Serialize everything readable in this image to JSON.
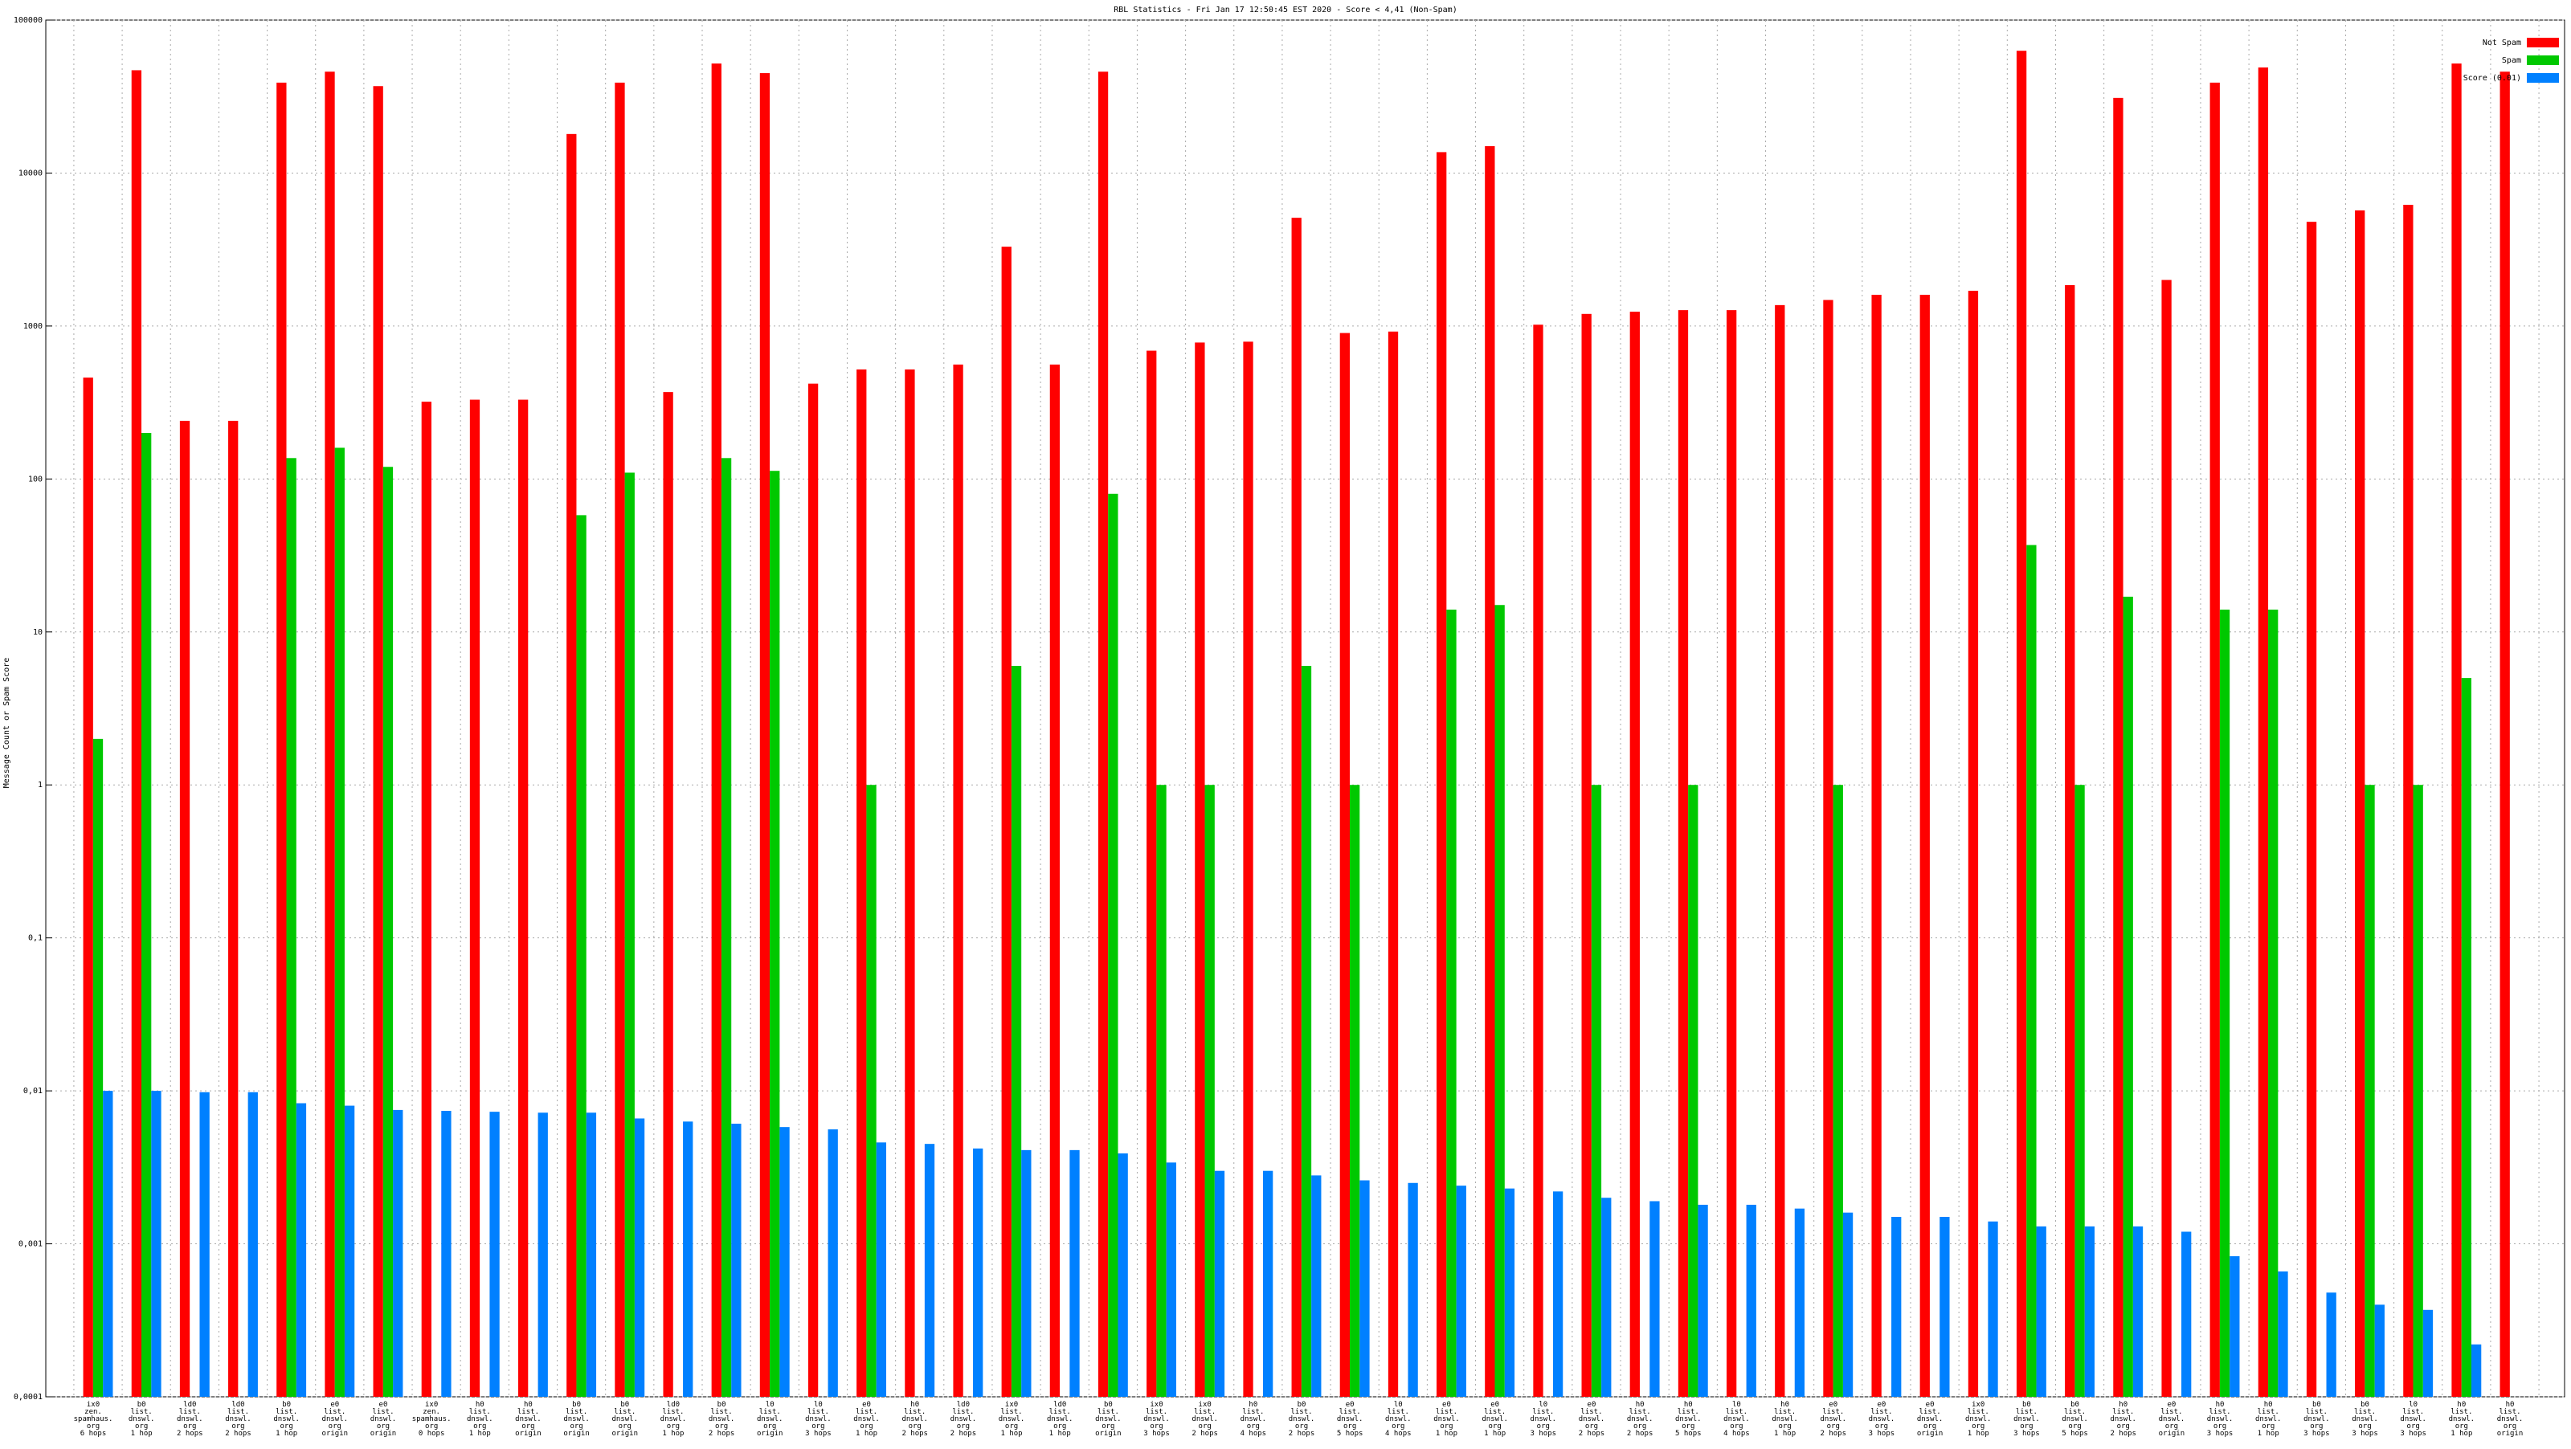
{
  "chart_data": {
    "type": "bar",
    "title": "RBL Statistics - Fri Jan 17 12:50:45 EST 2020 - Score < 4,41 (Non-Spam)",
    "y_label": "Message Count or Spam Score",
    "log_scale": true,
    "grid": true,
    "legend_position": "top-right",
    "ylim": [
      0.0001,
      100000
    ],
    "yticks": [
      {
        "value": 0.0001,
        "label": "0,0001"
      },
      {
        "value": 0.001,
        "label": "0,001"
      },
      {
        "value": 0.01,
        "label": "0,01"
      },
      {
        "value": 0.1,
        "label": "0,1"
      },
      1,
      10,
      100,
      1000,
      10000,
      100000
    ],
    "categories": [
      "ix0\nzen.\nspamhaus.\norg\n6 hops",
      "b0\nlist.\ndnswl.\norg\n1 hop",
      "ld0\nlist.\ndnswl.\norg\n2 hops",
      "ld0\nlist.\ndnswl.\norg\n2 hops",
      "b0\nlist.\ndnswl.\norg\n1 hop",
      "e0\nlist.\ndnswl.\norg\norigin",
      "e0\nlist.\ndnswl.\norg\norigin",
      "ix0\nzen.\nspamhaus.\norg\n0 hops",
      "h0\nlist.\ndnswl.\norg\n1 hop",
      "h0\nlist.\ndnswl.\norg\norigin",
      "b0\nlist.\ndnswl.\norg\norigin",
      "b0\nlist.\ndnswl.\norg\norigin",
      "ld0\nlist.\ndnswl.\norg\n1 hop",
      "b0\nlist.\ndnswl.\norg\n2 hops",
      "l0\nlist.\ndnswl.\norg\norigin",
      "l0\nlist.\ndnswl.\norg\n3 hops",
      "e0\nlist.\ndnswl.\norg\n1 hop",
      "h0\nlist.\ndnswl.\norg\n2 hops",
      "ld0\nlist.\ndnswl.\norg\n2 hops",
      "ix0\nlist.\ndnswl.\norg\n1 hop",
      "ld0\nlist.\ndnswl.\norg\n1 hop",
      "b0\nlist.\ndnswl.\norg\norigin",
      "ix0\nlist.\ndnswl.\norg\n3 hops",
      "ix0\nlist.\ndnswl.\norg\n2 hops",
      "h0\nlist.\ndnswl.\norg\n4 hops",
      "b0\nlist.\ndnswl.\norg\n2 hops",
      "e0\nlist.\ndnswl.\norg\n5 hops",
      "l0\nlist.\ndnswl.\norg\n4 hops",
      "e0\nlist.\ndnswl.\norg\n1 hop",
      "e0\nlist.\ndnswl.\norg\n1 hop",
      "l0\nlist.\ndnswl.\norg\n3 hops",
      "e0\nlist.\ndnswl.\norg\n2 hops",
      "h0\nlist.\ndnswl.\norg\n2 hops",
      "h0\nlist.\ndnswl.\norg\n5 hops",
      "l0\nlist.\ndnswl.\norg\n4 hops",
      "h0\nlist.\ndnswl.\norg\n1 hop",
      "e0\nlist.\ndnswl.\norg\n2 hops",
      "e0\nlist.\ndnswl.\norg\n3 hops",
      "e0\nlist.\ndnswl.\norg\norigin",
      "ix0\nlist.\ndnswl.\norg\n1 hop",
      "b0\nlist.\ndnswl.\norg\n3 hops",
      "b0\nlist.\ndnswl.\norg\n5 hops",
      "h0\nlist.\ndnswl.\norg\n2 hops",
      "e0\nlist.\ndnswl.\norg\norigin",
      "h0\nlist.\ndnswl.\norg\n3 hops",
      "h0\nlist.\ndnswl.\norg\n1 hop",
      "b0\nlist.\ndnswl.\norg\n3 hops",
      "b0\nlist.\ndnswl.\norg\n3 hops",
      "l0\nlist.\ndnswl.\norg\n3 hops",
      "h0\nlist.\ndnswl.\norg\n1 hop",
      "h0\nlist.\ndnswl.\norg\norigin"
    ],
    "series": [
      {
        "name": "Not Spam",
        "color": "#ff0000",
        "values": [
          460,
          47000,
          240,
          240,
          39000,
          46000,
          37000,
          320,
          330,
          330,
          18000,
          39000,
          370,
          52000,
          45000,
          420,
          520,
          520,
          560,
          3300,
          560,
          46000,
          690,
          780,
          790,
          5100,
          900,
          920,
          13700,
          15000,
          1020,
          1200,
          1240,
          1270,
          1270,
          1370,
          1480,
          1600,
          1600,
          1700,
          63000,
          1850,
          31000,
          2000,
          39000,
          49000,
          4800,
          5700,
          6200,
          52000,
          46000
        ]
      },
      {
        "name": "Spam",
        "color": "#00c800",
        "values": [
          2,
          200,
          null,
          null,
          137,
          160,
          120,
          null,
          null,
          null,
          58,
          110,
          null,
          137,
          113,
          null,
          1,
          null,
          null,
          6,
          null,
          80,
          1,
          1,
          null,
          6,
          1,
          null,
          14,
          15,
          null,
          1,
          null,
          1,
          null,
          null,
          1,
          null,
          null,
          null,
          37,
          1,
          17,
          null,
          14,
          14,
          null,
          1,
          1,
          5,
          null
        ]
      },
      {
        "name": "Score (0.01)",
        "color": "#0080ff",
        "values": [
          0.01,
          0.01,
          0.0098,
          0.0098,
          0.0083,
          0.008,
          0.0075,
          0.0074,
          0.0073,
          0.0072,
          0.0072,
          0.0066,
          0.0063,
          0.0061,
          0.0058,
          0.0056,
          0.0046,
          0.0045,
          0.0042,
          0.0041,
          0.0041,
          0.0039,
          0.0034,
          0.003,
          0.003,
          0.0028,
          0.0026,
          0.0025,
          0.0024,
          0.0023,
          0.0022,
          0.002,
          0.0019,
          0.0018,
          0.0018,
          0.0017,
          0.0016,
          0.0015,
          0.0015,
          0.0014,
          0.0013,
          0.0013,
          0.0013,
          0.0012,
          0.00083,
          0.00066,
          0.00048,
          0.0004,
          0.00037,
          0.00022,
          null
        ]
      }
    ]
  }
}
